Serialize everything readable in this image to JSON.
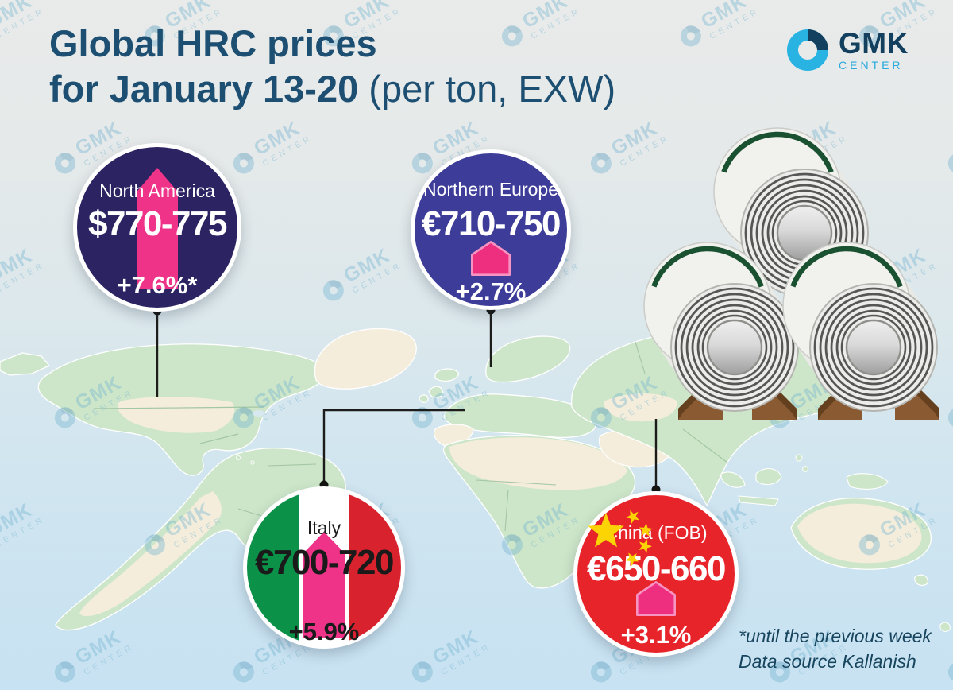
{
  "title": {
    "line1": "Global HRC prices",
    "line2_bold": "for January 13-20",
    "line2_light": " (per ton, EXW)"
  },
  "logo": {
    "name": "GMK",
    "subtitle": "CENTER"
  },
  "watermark": {
    "name": "GMK",
    "subtitle": "CENTER"
  },
  "regions": {
    "north_america": {
      "label": "North America",
      "price": "$770-775",
      "change": "+7.6%*"
    },
    "northern_europe": {
      "label": "Northern Europe",
      "price": "€710-750",
      "change": "+2.7%"
    },
    "italy": {
      "label": "Italy",
      "price": "€700-720",
      "change": "+5.9%"
    },
    "china": {
      "label": "China (FOB)",
      "price": "€650-660",
      "change": "+3.1%"
    }
  },
  "footnote": {
    "line1": "*until the previous week",
    "line2": "Data source Kallanish"
  },
  "colors": {
    "title_text": "#1d4f72",
    "accent_pink": "#ee3389",
    "north_america_circle": "#2c2363",
    "northern_europe_circle": "#3d3c99",
    "china_red": "#e8242b",
    "italy_green": "#0b9148",
    "italy_red": "#d8232e",
    "logo_cyan": "#29b3e2",
    "logo_navy": "#14405f",
    "map_land_green": "#cde6c9",
    "map_land_cream": "#f4eddb"
  },
  "illustration": {
    "name": "steel-coils",
    "count": 3
  },
  "chart_data": {
    "type": "table",
    "title": "Global HRC prices for January 13-20 (per ton, EXW)",
    "columns": [
      "region",
      "currency",
      "price_min",
      "price_max",
      "weekly_change"
    ],
    "rows": [
      [
        "North America",
        "$",
        770,
        775,
        "+7.6%*"
      ],
      [
        "Northern Europe",
        "€",
        710,
        750,
        "+2.7%"
      ],
      [
        "Italy",
        "€",
        700,
        720,
        "+5.9%"
      ],
      [
        "China (FOB)",
        "€",
        650,
        660,
        "+3.1%"
      ]
    ],
    "notes": [
      "*until the previous week",
      "Data source Kallanish"
    ]
  }
}
